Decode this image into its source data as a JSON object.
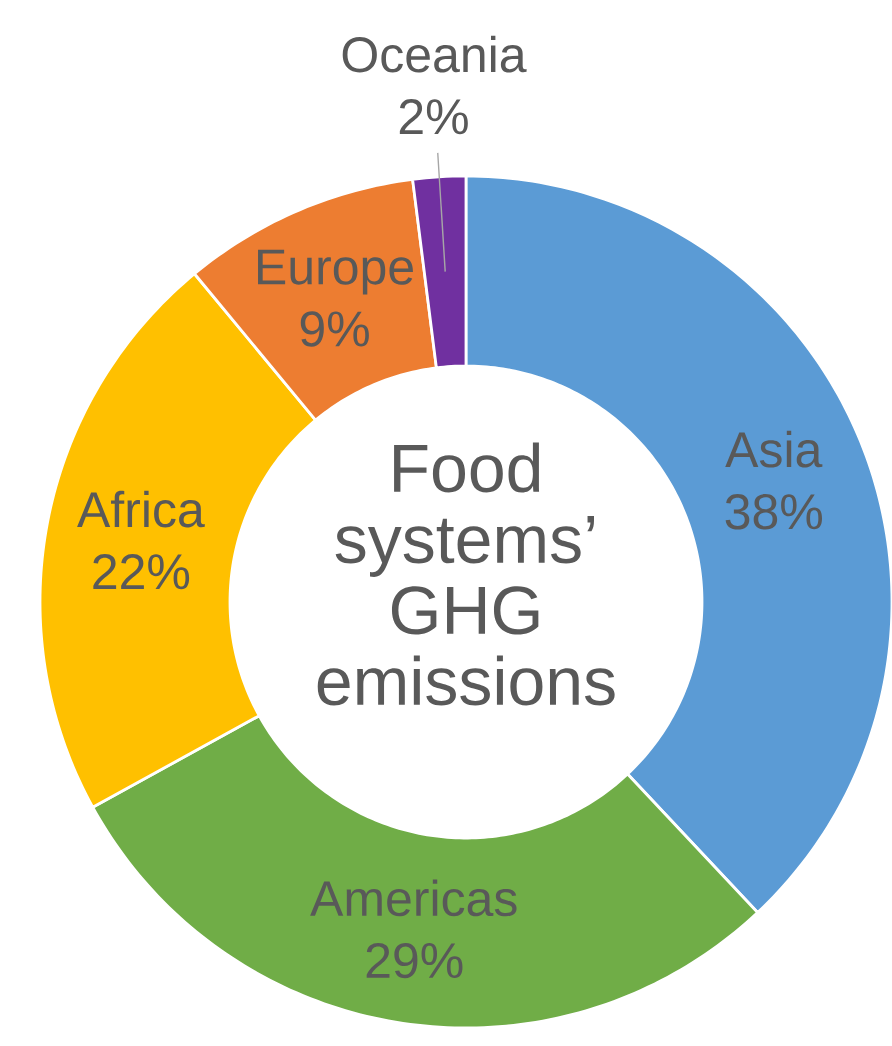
{
  "chart_data": {
    "type": "donut",
    "title": "Food systems’ GHG emissions",
    "categories": [
      "Asia",
      "Americas",
      "Africa",
      "Europe",
      "Oceania"
    ],
    "values": [
      38,
      29,
      22,
      9,
      2
    ],
    "value_labels": [
      "38%",
      "29%",
      "22%",
      "9%",
      "2%"
    ],
    "colors": [
      "#5b9bd5",
      "#70ad47",
      "#ffc000",
      "#ed7d31",
      "#7030a0"
    ]
  }
}
